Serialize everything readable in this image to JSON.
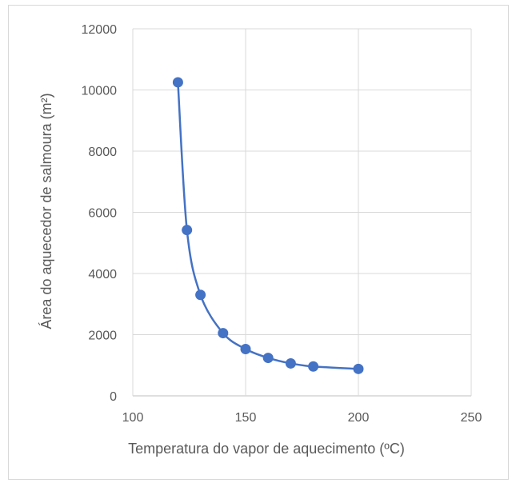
{
  "chart_data": {
    "type": "scatter",
    "title": "",
    "xlabel": "Temperatura do vapor de aquecimento (ºC)",
    "ylabel": "Área do aquecedor de salmoura (m²)",
    "xlim": [
      100,
      250
    ],
    "ylim": [
      0,
      12000
    ],
    "x_ticks": [
      "100",
      "150",
      "200",
      "250"
    ],
    "y_ticks": [
      "0",
      "2000",
      "4000",
      "6000",
      "8000",
      "10000",
      "12000"
    ],
    "grid": true,
    "smooth_line": true,
    "series": [
      {
        "color": "#4472c4",
        "points": [
          {
            "x": 120,
            "y": 10250
          },
          {
            "x": 124,
            "y": 5420
          },
          {
            "x": 130,
            "y": 3300
          },
          {
            "x": 140,
            "y": 2050
          },
          {
            "x": 150,
            "y": 1530
          },
          {
            "x": 160,
            "y": 1240
          },
          {
            "x": 170,
            "y": 1060
          },
          {
            "x": 180,
            "y": 960
          },
          {
            "x": 200,
            "y": 880
          }
        ]
      }
    ]
  }
}
